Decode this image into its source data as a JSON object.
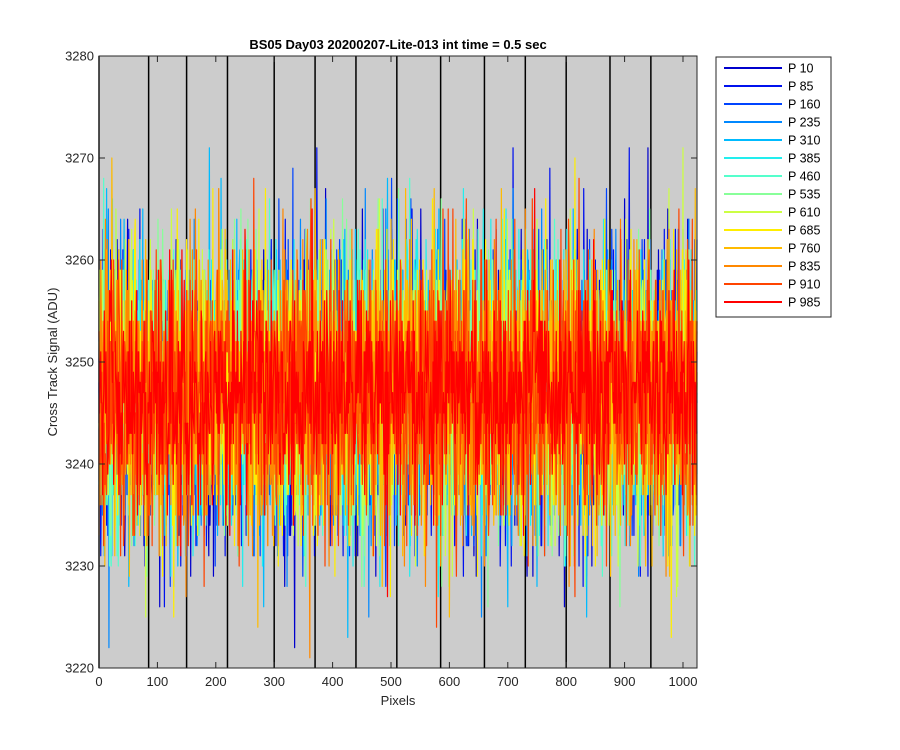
{
  "chart_data": {
    "type": "line",
    "title": "BS05 Day03 20200207-Lite-013 int time = 0.5 sec",
    "xlabel": "Pixels",
    "ylabel": "Cross Track Signal (ADU)",
    "xlim": [
      0,
      1024
    ],
    "ylim": [
      3220,
      3280
    ],
    "x_ticks": [
      0,
      100,
      200,
      300,
      400,
      500,
      600,
      700,
      800,
      900,
      1000
    ],
    "y_ticks": [
      3220,
      3230,
      3240,
      3250,
      3260,
      3270,
      3280
    ],
    "x_tick_labels": [
      "0",
      "100",
      "200",
      "300",
      "400",
      "500",
      "600",
      "700",
      "800",
      "900",
      "1000"
    ],
    "y_tick_labels": [
      "3220",
      "3230",
      "3240",
      "3250",
      "3260",
      "3270",
      "3280"
    ],
    "background_color": "#cccccc",
    "vertical_markers": [
      0,
      85,
      150,
      220,
      300,
      370,
      440,
      510,
      585,
      660,
      730,
      800,
      875,
      945
    ],
    "grid": false,
    "legend_position": "outside-right",
    "noise": {
      "mean": 3247,
      "std": 7,
      "min_observed": 3220,
      "max_observed": 3277
    },
    "series": [
      {
        "name": "P 10",
        "color": "#0000cc"
      },
      {
        "name": "P 85",
        "color": "#0011ee"
      },
      {
        "name": "P 160",
        "color": "#0044ff"
      },
      {
        "name": "P 235",
        "color": "#0088ff"
      },
      {
        "name": "P 310",
        "color": "#00bbff"
      },
      {
        "name": "P 385",
        "color": "#22eeee"
      },
      {
        "name": "P 460",
        "color": "#55ffcc"
      },
      {
        "name": "P 535",
        "color": "#88ff99"
      },
      {
        "name": "P 610",
        "color": "#ccff44"
      },
      {
        "name": "P 685",
        "color": "#ffee00"
      },
      {
        "name": "P 760",
        "color": "#ffbb00"
      },
      {
        "name": "P 835",
        "color": "#ff8800"
      },
      {
        "name": "P 910",
        "color": "#ff4400"
      },
      {
        "name": "P 985",
        "color": "#ff0000"
      }
    ]
  }
}
